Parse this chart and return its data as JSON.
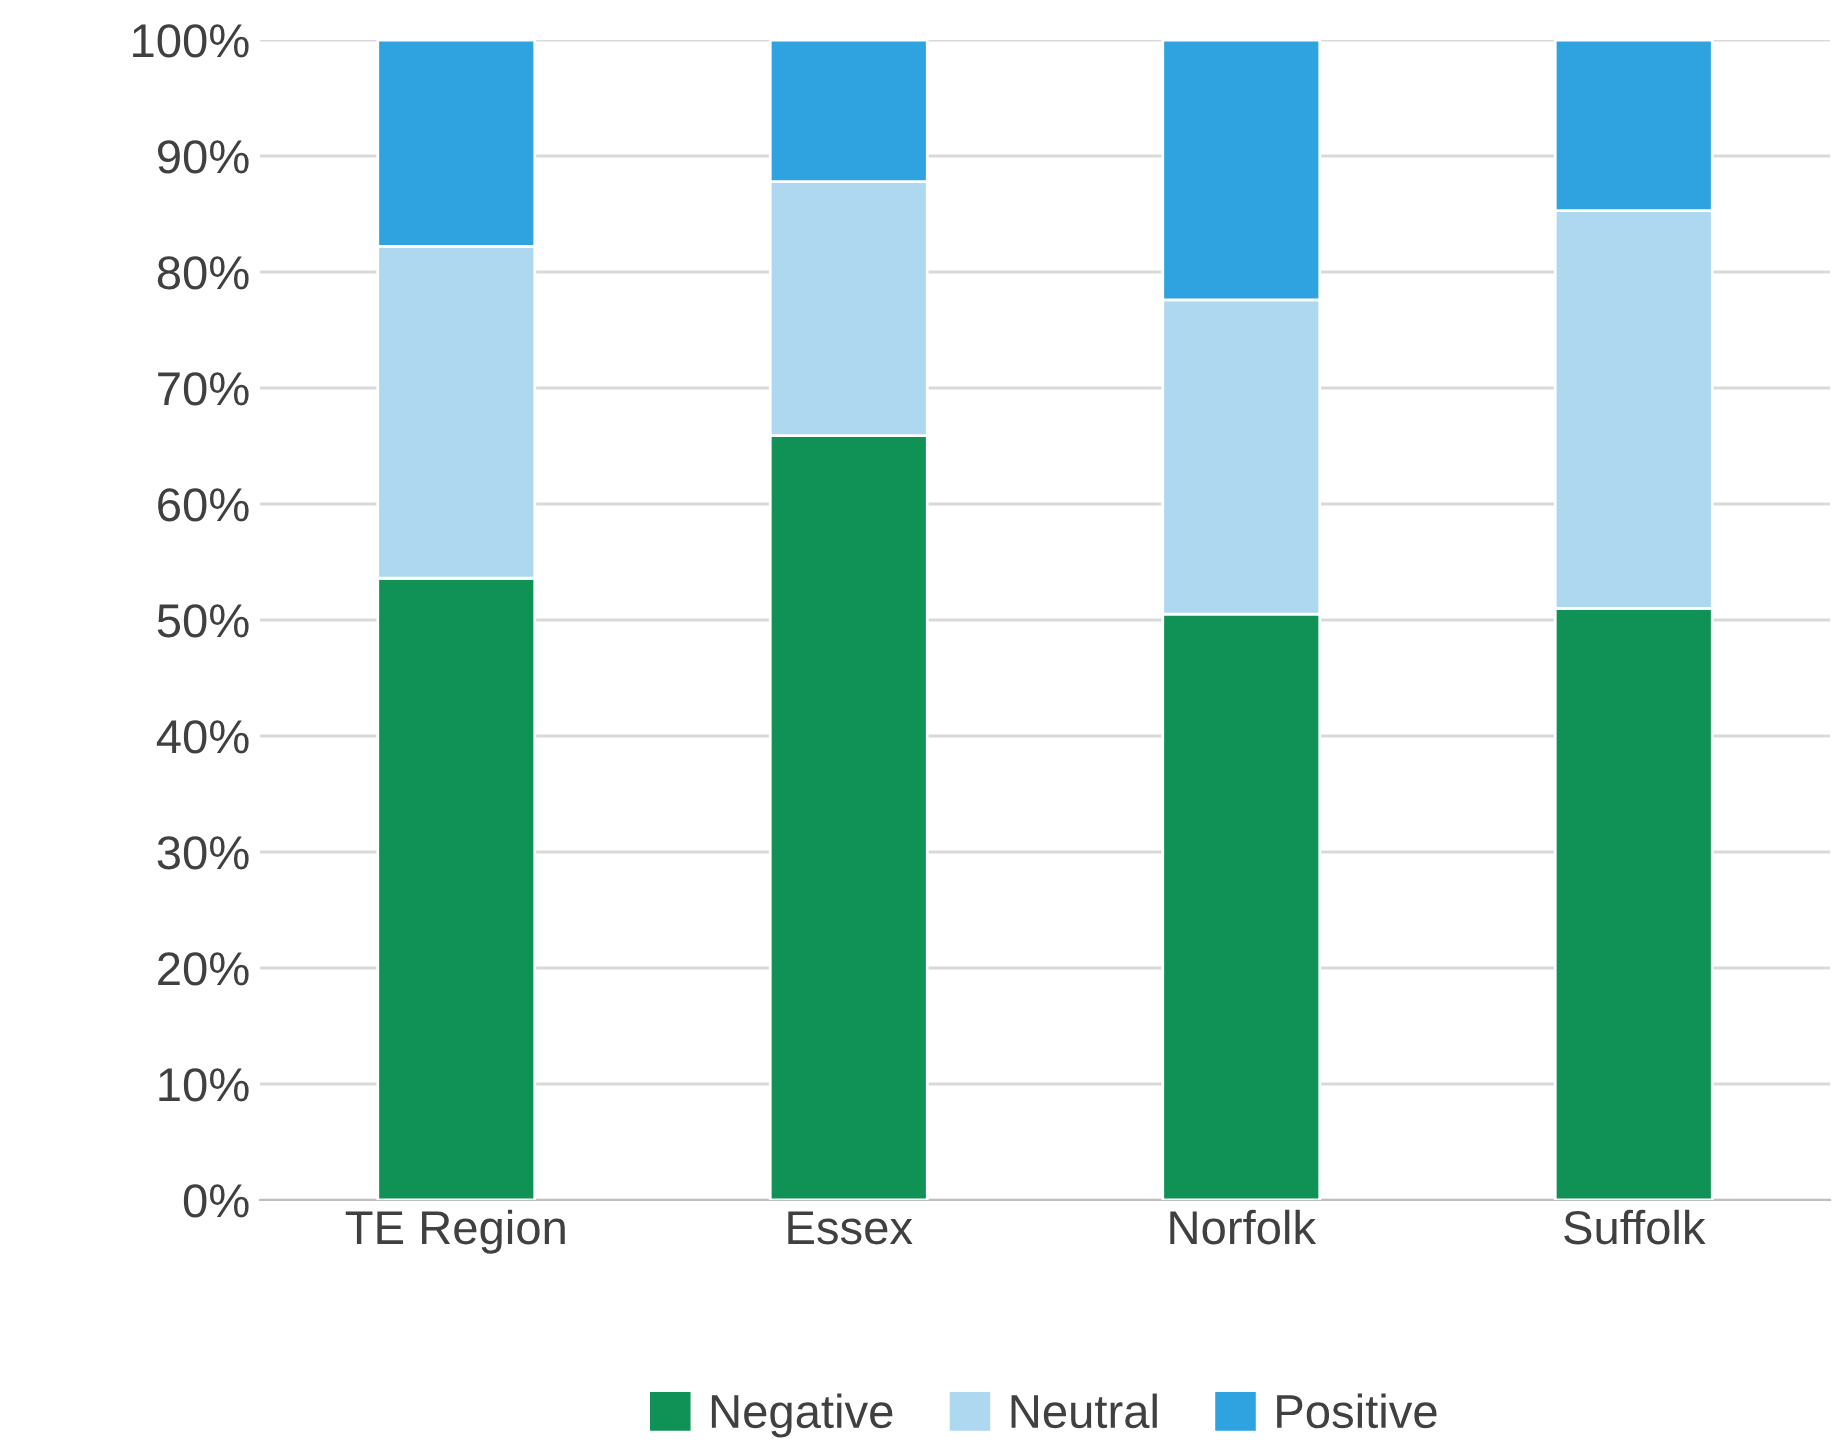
{
  "chart_data": {
    "type": "bar",
    "stacked": true,
    "categories": [
      "TE Region",
      "Essex",
      "Norfolk",
      "Suffolk"
    ],
    "series": [
      {
        "name": "Negative",
        "color": "#109257",
        "values": [
          53.6,
          65.9,
          50.5,
          51.0
        ]
      },
      {
        "name": "Neutral",
        "color": "#add8ef",
        "values": [
          28.6,
          21.9,
          27.1,
          34.3
        ]
      },
      {
        "name": "Positive",
        "color": "#2ea3df",
        "values": [
          17.8,
          12.2,
          22.4,
          14.7
        ]
      }
    ],
    "ylim": [
      0,
      100
    ],
    "yticks": [
      {
        "value": 0,
        "label": "0%"
      },
      {
        "value": 10,
        "label": "10%"
      },
      {
        "value": 20,
        "label": "20%"
      },
      {
        "value": 30,
        "label": "30%"
      },
      {
        "value": 40,
        "label": "40%"
      },
      {
        "value": 50,
        "label": "50%"
      },
      {
        "value": 60,
        "label": "60%"
      },
      {
        "value": 70,
        "label": "70%"
      },
      {
        "value": 80,
        "label": "80%"
      },
      {
        "value": 90,
        "label": "90%"
      },
      {
        "value": 100,
        "label": "100%"
      }
    ],
    "grid": "y",
    "legend": "bottom"
  }
}
